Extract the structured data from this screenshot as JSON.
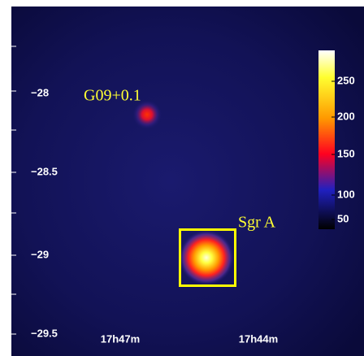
{
  "image": {
    "sources": [
      {
        "label": "G09+0.1"
      },
      {
        "label": "Sgr A"
      }
    ],
    "y_ticks": [
      "−28",
      "−28.5",
      "−29",
      "−29.5"
    ],
    "x_ticks": [
      "17h47m",
      "17h44m"
    ],
    "colorbar_ticks": [
      "250",
      "200",
      "150",
      "100",
      "50"
    ]
  }
}
